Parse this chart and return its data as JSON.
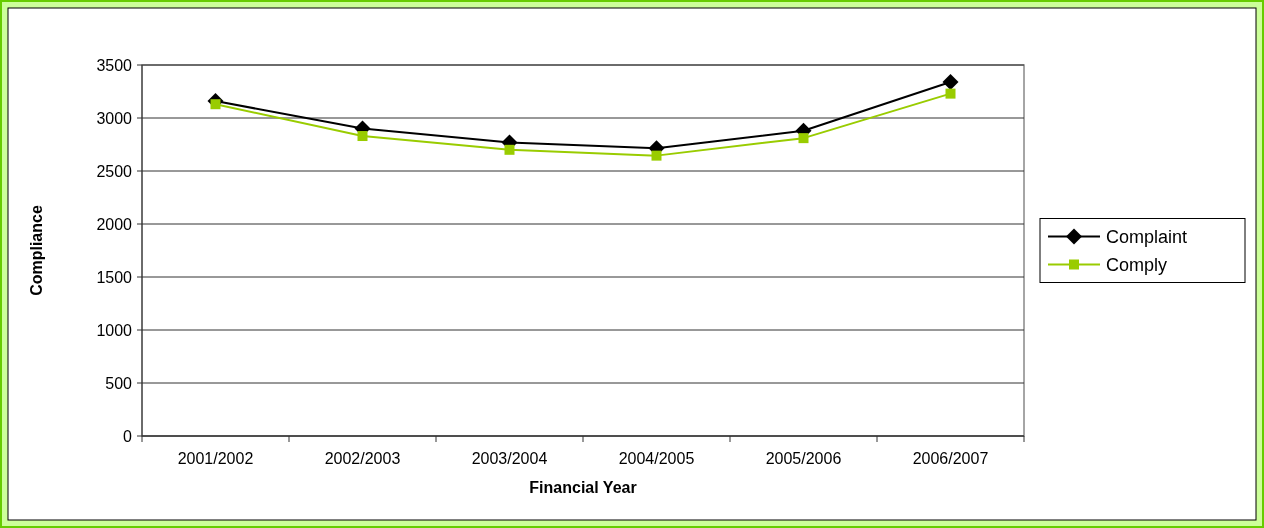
{
  "chart_data": {
    "type": "line",
    "xlabel": "Financial Year",
    "ylabel": "Compliance",
    "categories": [
      "2001/2002",
      "2002/2003",
      "2003/2004",
      "2004/2005",
      "2005/2006",
      "2006/2007"
    ],
    "series": [
      {
        "name": "Complaint",
        "color": "#000000",
        "marker": "diamond",
        "values": [
          3160,
          2900,
          2770,
          2715,
          2880,
          3340
        ]
      },
      {
        "name": "Comply",
        "color": "#99cc00",
        "marker": "square",
        "values": [
          3130,
          2830,
          2700,
          2645,
          2810,
          3230
        ]
      }
    ],
    "ylim": [
      0,
      3500
    ],
    "yticks": [
      0,
      500,
      1000,
      1500,
      2000,
      2500,
      3000,
      3500
    ],
    "grid": "y",
    "legend": "right"
  }
}
